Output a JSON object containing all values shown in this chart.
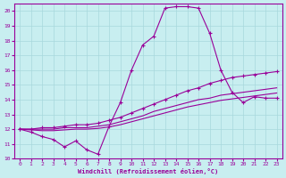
{
  "xlabel": "Windchill (Refroidissement éolien,°C)",
  "background_color": "#c8eef0",
  "grid_color": "#a8d8dc",
  "line_color": "#990099",
  "xlim": [
    -0.5,
    23.5
  ],
  "ylim": [
    10,
    20.5
  ],
  "xticks": [
    0,
    1,
    2,
    3,
    4,
    5,
    6,
    7,
    8,
    9,
    10,
    11,
    12,
    13,
    14,
    15,
    16,
    17,
    18,
    19,
    20,
    21,
    22,
    23
  ],
  "yticks": [
    10,
    11,
    12,
    13,
    14,
    15,
    16,
    17,
    18,
    19,
    20
  ],
  "hours": [
    0,
    1,
    2,
    3,
    4,
    5,
    6,
    7,
    8,
    9,
    10,
    11,
    12,
    13,
    14,
    15,
    16,
    17,
    18,
    19,
    20,
    21,
    22,
    23
  ],
  "temp_main": [
    12.0,
    11.8,
    11.5,
    11.3,
    10.8,
    11.2,
    10.6,
    10.3,
    12.2,
    13.8,
    16.0,
    17.7,
    18.3,
    20.2,
    20.3,
    20.3,
    20.2,
    18.5,
    16.0,
    14.5,
    13.8,
    14.2,
    14.1,
    14.1
  ],
  "temp_upper": [
    12.0,
    12.0,
    12.1,
    12.1,
    12.2,
    12.3,
    12.3,
    12.4,
    12.6,
    12.8,
    13.1,
    13.4,
    13.7,
    14.0,
    14.3,
    14.6,
    14.8,
    15.1,
    15.3,
    15.5,
    15.6,
    15.7,
    15.8,
    15.9
  ],
  "temp_mid": [
    12.0,
    12.0,
    12.0,
    12.0,
    12.1,
    12.1,
    12.1,
    12.2,
    12.3,
    12.5,
    12.7,
    12.9,
    13.2,
    13.4,
    13.6,
    13.8,
    14.0,
    14.1,
    14.3,
    14.4,
    14.5,
    14.6,
    14.7,
    14.8
  ],
  "temp_lower": [
    12.0,
    11.95,
    11.9,
    11.9,
    11.95,
    12.0,
    12.0,
    12.05,
    12.15,
    12.3,
    12.5,
    12.7,
    12.9,
    13.1,
    13.3,
    13.5,
    13.65,
    13.8,
    13.95,
    14.05,
    14.15,
    14.25,
    14.35,
    14.45
  ]
}
